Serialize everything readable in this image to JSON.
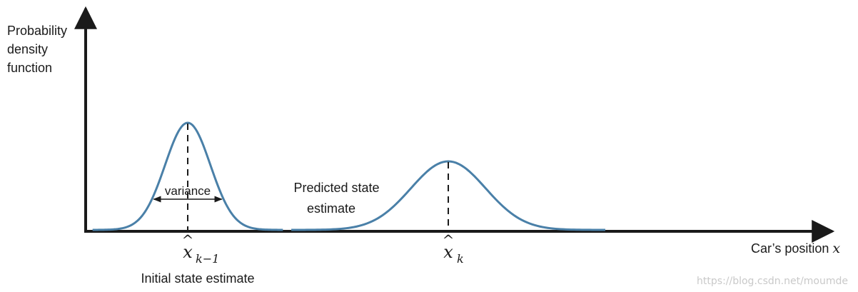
{
  "y_axis_label": [
    "Probability",
    "density",
    "function"
  ],
  "x_axis_label": {
    "text": "Car’s position ",
    "symbol": "x"
  },
  "curves": [
    {
      "name": "initial",
      "mean_symbol": "x",
      "mean_subscript": "k−1",
      "caption": [
        "Initial state estimate"
      ],
      "variance_label": "variance",
      "mean": 1.0,
      "sigma": 0.2,
      "peak": 1.0
    },
    {
      "name": "predicted",
      "mean_symbol": "x",
      "mean_subscript": "k",
      "caption": [
        "Predicted state",
        "estimate"
      ],
      "mean": 3.3,
      "sigma": 0.33,
      "peak": 0.64
    }
  ],
  "colors": {
    "curve": "#4a80a8",
    "axis": "#1a1a1a",
    "dashed": "#1a1a1a"
  },
  "watermark": "https://blog.csdn.net/moumde"
}
